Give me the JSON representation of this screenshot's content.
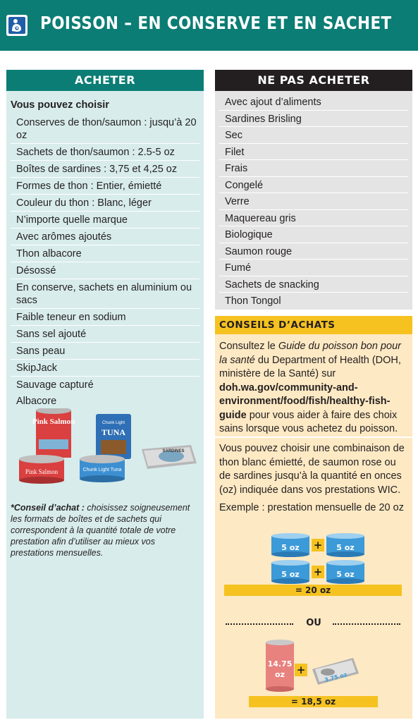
{
  "header": {
    "title": "POISSON – EN CONSERVE ET EN SACHET",
    "icon": "wic-mother-child-icon",
    "color": "#0b7d74"
  },
  "buy": {
    "heading": "ACHETER",
    "subheading": "Vous pouvez choisir",
    "items": [
      "Conserves de thon/saumon : jusqu’à 20 oz",
      "Sachets de thon/saumon : 2.5-5 oz",
      "Boîtes de sardines : 3,75 et 4,25 oz",
      "Formes de thon : Entier, émietté",
      "Couleur du thon : Blanc, léger",
      "N’importe quelle marque",
      "Avec arômes ajoutés",
      "Thon albacore",
      "Désossé",
      "En conserve, sachets en aluminium ou sacs",
      "Faible teneur en sodium",
      "Sans sel ajouté",
      "Sans peau",
      "SkipJack",
      "Sauvage capturé",
      "Albacore"
    ],
    "illustration": {
      "pink_salmon_can_label": "Pink Salmon",
      "pink_salmon_small_label": "Pink Salmon",
      "tuna_pouch_top": "Chunk Light",
      "tuna_pouch_label": "TUNA",
      "chunk_light_tuna_label": "Chunk Light Tuna",
      "sardines_label": "SARDINES"
    },
    "tip_label": "*Conseil d’achat :",
    "tip_text": " choisissez soigneusement les formats de boîtes et de sachets qui correspondent à la quantité totale de votre prestation afin d’utiliser au mieux vos prestations mensuelles."
  },
  "dont_buy": {
    "heading": "NE PAS ACHETER",
    "items": [
      "Avec ajout d’aliments",
      "Sardines Brisling",
      "Sec",
      "Filet",
      "Frais",
      "Congelé",
      "Verre",
      "Maquereau gris",
      "Biologique",
      "Saumon rouge",
      "Fumé",
      "Sachets de snacking",
      "Thon Tongol"
    ]
  },
  "shopping_tips": {
    "heading": "CONSEILS D’ACHATS",
    "p1_a": "Consultez le ",
    "p1_italic": "Guide du poisson bon pour la santé",
    "p1_b": " du Department of Health (DOH, ministère de la Santé) sur ",
    "p1_link": "doh.wa.gov/community-and-environment/food/fish/healthy-fish-guide",
    "p1_c": " pour vous aider à faire des choix sains lorsque vous achetez du poisson.",
    "p2": "Vous pouvez choisir une combinaison de thon blanc émietté, de saumon rose ou de sardines jusqu’à la quantité en onces (oz) indiquée dans vos prestations WIC.",
    "p3": "Exemple : prestation mensuelle de 20 oz",
    "can_label": "5 oz",
    "plus": "+",
    "total_1": "= 20 oz",
    "or": "OU",
    "big_can_label_1": "14.75",
    "big_can_label_2": "oz",
    "sardine_label": "3.75 oz",
    "total_2": "= 18,5 oz"
  }
}
